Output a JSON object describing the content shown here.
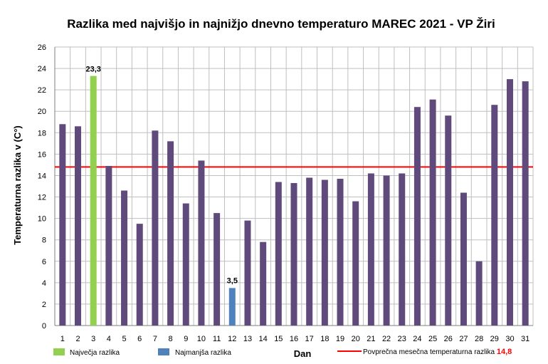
{
  "chart_data": {
    "type": "bar",
    "title": "Razlika med najvišjo in najnižjo dnevno temperaturo MAREC 2021 - VP Žiri",
    "xlabel": "Dan",
    "ylabel": "Temperaturna razlika v (C°)",
    "ylim": [
      0,
      26
    ],
    "ytick_step": 2,
    "grid": true,
    "categories": [
      "1",
      "2",
      "3",
      "4",
      "5",
      "6",
      "7",
      "8",
      "9",
      "10",
      "11",
      "12",
      "13",
      "14",
      "15",
      "16",
      "17",
      "18",
      "19",
      "20",
      "21",
      "22",
      "23",
      "24",
      "25",
      "26",
      "27",
      "28",
      "29",
      "30",
      "31"
    ],
    "values": [
      18.8,
      18.6,
      23.3,
      14.9,
      12.6,
      9.5,
      18.2,
      17.2,
      11.4,
      15.4,
      10.5,
      3.5,
      9.8,
      7.8,
      13.4,
      13.3,
      13.8,
      13.6,
      13.7,
      11.6,
      14.2,
      14.0,
      14.2,
      20.4,
      21.1,
      19.6,
      12.4,
      6.0,
      20.6,
      23.0,
      22.8
    ],
    "max_index": 2,
    "min_index": 11,
    "max_label": "23,3",
    "min_label": "3,5",
    "average_value": 14.8,
    "average_label": "14,8",
    "colors": {
      "bar": "#604a7b",
      "max": "#92d050",
      "min": "#4f81bd",
      "average_line": "#ff0000",
      "grid": "#bfbfbf",
      "axis": "#7f7f7f"
    },
    "legend": {
      "max": "Največja razlika",
      "min": "Najmanjša razlika",
      "average": "Povprečna mesečna temperaturna razlika"
    }
  }
}
